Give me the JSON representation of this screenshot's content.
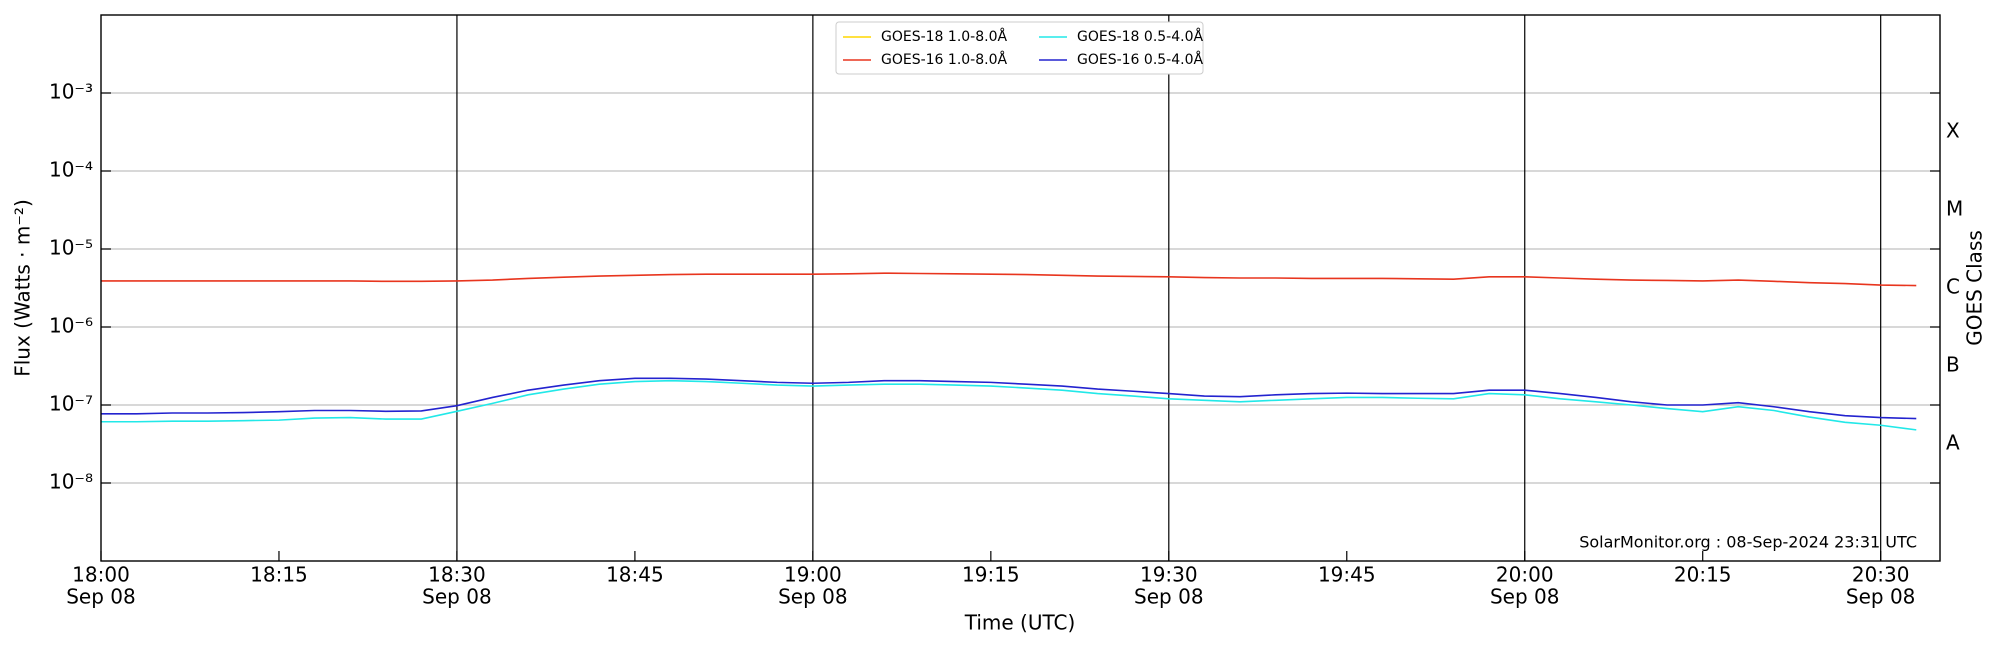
{
  "chart_data": {
    "type": "line",
    "xlabel": "Time (UTC)",
    "ylabel": "Flux (Watts · m⁻²)",
    "y2label": "GOES Class",
    "annotation": "SolarMonitor.org : 08-Sep-2024 23:31 UTC",
    "yscale": "log",
    "grid": true,
    "legend": "upper center",
    "x": [
      "18:00",
      "18:03",
      "18:06",
      "18:09",
      "18:12",
      "18:15",
      "18:18",
      "18:21",
      "18:24",
      "18:27",
      "18:30",
      "18:33",
      "18:36",
      "18:39",
      "18:42",
      "18:45",
      "18:48",
      "18:51",
      "18:54",
      "18:57",
      "19:00",
      "19:03",
      "19:06",
      "19:09",
      "19:12",
      "19:15",
      "19:18",
      "19:21",
      "19:24",
      "19:27",
      "19:30",
      "19:33",
      "19:36",
      "19:39",
      "19:42",
      "19:45",
      "19:48",
      "19:51",
      "19:54",
      "19:57",
      "20:00",
      "20:03",
      "20:06",
      "20:09",
      "20:12",
      "20:15",
      "20:18",
      "20:21",
      "20:24",
      "20:27",
      "20:30",
      "20:33"
    ],
    "xlim": [
      "18:00",
      "20:35"
    ],
    "xticks": [
      {
        "value": "18:00",
        "label": [
          "18:00",
          "Sep 08"
        ]
      },
      "18:15",
      {
        "value": "18:30",
        "label": [
          "18:30",
          "Sep 08"
        ]
      },
      "18:45",
      {
        "value": "19:00",
        "label": [
          "19:00",
          "Sep 08"
        ]
      },
      "19:15",
      {
        "value": "19:30",
        "label": [
          "19:30",
          "Sep 08"
        ]
      },
      "19:45",
      {
        "value": "20:00",
        "label": [
          "20:00",
          "Sep 08"
        ]
      },
      "20:15",
      {
        "value": "20:30",
        "label": [
          "20:30",
          "Sep 08"
        ]
      }
    ],
    "vlines": [
      "18:30",
      "19:00",
      "19:30",
      "20:00",
      "20:30"
    ],
    "ylim": [
      1e-09,
      0.01
    ],
    "yticks": [
      {
        "value": 1e-08,
        "label": "10⁻⁸"
      },
      {
        "value": 1e-07,
        "label": "10⁻⁷"
      },
      {
        "value": 1e-06,
        "label": "10⁻⁶"
      },
      {
        "value": 1e-05,
        "label": "10⁻⁵"
      },
      {
        "value": 0.0001,
        "label": "10⁻⁴"
      },
      {
        "value": 0.001,
        "label": "10⁻³"
      }
    ],
    "y2lim": [
      1e-09,
      0.01
    ],
    "y2ticks": [
      {
        "value": 3.16e-08,
        "label": "A"
      },
      {
        "value": 3.16e-07,
        "label": "B"
      },
      {
        "value": 3.16e-06,
        "label": "C"
      },
      {
        "value": 3.16e-05,
        "label": "M"
      },
      {
        "value": 0.000316,
        "label": "X"
      }
    ],
    "series": [
      {
        "name": "GOES-18 1.0-8.0Å",
        "color": "#ffd700",
        "values": [
          null,
          null,
          null,
          null,
          null,
          null,
          null,
          null,
          null,
          null,
          null,
          null,
          null,
          null,
          null,
          null,
          null,
          null,
          null,
          null,
          null,
          null,
          null,
          null,
          null,
          null,
          null,
          null,
          null,
          null,
          null,
          null,
          null,
          null,
          null,
          null,
          null,
          null,
          null,
          null,
          null,
          null,
          null,
          null,
          null,
          null,
          null,
          null,
          null,
          null,
          null,
          null
        ]
      },
      {
        "name": "GOES-16 1.0-8.0Å",
        "color": "#e8351e",
        "values": [
          3.9e-06,
          3.9e-06,
          3.9e-06,
          3.9e-06,
          3.9e-06,
          3.9e-06,
          3.9e-06,
          3.9e-06,
          3.85e-06,
          3.85e-06,
          3.9e-06,
          4e-06,
          4.2e-06,
          4.35e-06,
          4.5e-06,
          4.6e-06,
          4.7e-06,
          4.75e-06,
          4.75e-06,
          4.75e-06,
          4.75e-06,
          4.8e-06,
          4.9e-06,
          4.85e-06,
          4.8e-06,
          4.75e-06,
          4.7e-06,
          4.6e-06,
          4.5e-06,
          4.45e-06,
          4.4e-06,
          4.3e-06,
          4.25e-06,
          4.25e-06,
          4.2e-06,
          4.2e-06,
          4.2e-06,
          4.15e-06,
          4.1e-06,
          4.4e-06,
          4.4e-06,
          4.25e-06,
          4.1e-06,
          4e-06,
          3.95e-06,
          3.9e-06,
          4e-06,
          3.85e-06,
          3.7e-06,
          3.6e-06,
          3.45e-06,
          3.4e-06
        ]
      },
      {
        "name": "GOES-18 0.5-4.0Å",
        "color": "#22e8e8",
        "values": [
          6.1e-08,
          6.1e-08,
          6.2e-08,
          6.2e-08,
          6.3e-08,
          6.4e-08,
          6.8e-08,
          6.9e-08,
          6.6e-08,
          6.6e-08,
          8.3e-08,
          1.05e-07,
          1.35e-07,
          1.6e-07,
          1.85e-07,
          2e-07,
          2.05e-07,
          2e-07,
          1.9e-07,
          1.8e-07,
          1.75e-07,
          1.8e-07,
          1.85e-07,
          1.85e-07,
          1.8e-07,
          1.75e-07,
          1.65e-07,
          1.55e-07,
          1.4e-07,
          1.3e-07,
          1.2e-07,
          1.15e-07,
          1.1e-07,
          1.15e-07,
          1.2e-07,
          1.25e-07,
          1.25e-07,
          1.22e-07,
          1.2e-07,
          1.4e-07,
          1.35e-07,
          1.2e-07,
          1.1e-07,
          1e-07,
          9e-08,
          8.2e-08,
          9.5e-08,
          8.5e-08,
          7e-08,
          6e-08,
          5.5e-08,
          4.8e-08
        ]
      },
      {
        "name": "GOES-16 0.5-4.0Å",
        "color": "#2323cf",
        "values": [
          7.7e-08,
          7.7e-08,
          7.9e-08,
          7.9e-08,
          8e-08,
          8.2e-08,
          8.5e-08,
          8.5e-08,
          8.3e-08,
          8.4e-08,
          9.8e-08,
          1.25e-07,
          1.55e-07,
          1.8e-07,
          2.05e-07,
          2.2e-07,
          2.2e-07,
          2.15e-07,
          2.05e-07,
          1.95e-07,
          1.9e-07,
          1.95e-07,
          2.05e-07,
          2.05e-07,
          2e-07,
          1.95e-07,
          1.85e-07,
          1.75e-07,
          1.6e-07,
          1.5e-07,
          1.4e-07,
          1.3e-07,
          1.28e-07,
          1.35e-07,
          1.4e-07,
          1.42e-07,
          1.4e-07,
          1.4e-07,
          1.4e-07,
          1.55e-07,
          1.55e-07,
          1.4e-07,
          1.25e-07,
          1.1e-07,
          1e-07,
          1e-07,
          1.07e-07,
          9.5e-08,
          8.2e-08,
          7.3e-08,
          6.9e-08,
          6.7e-08
        ]
      }
    ]
  }
}
